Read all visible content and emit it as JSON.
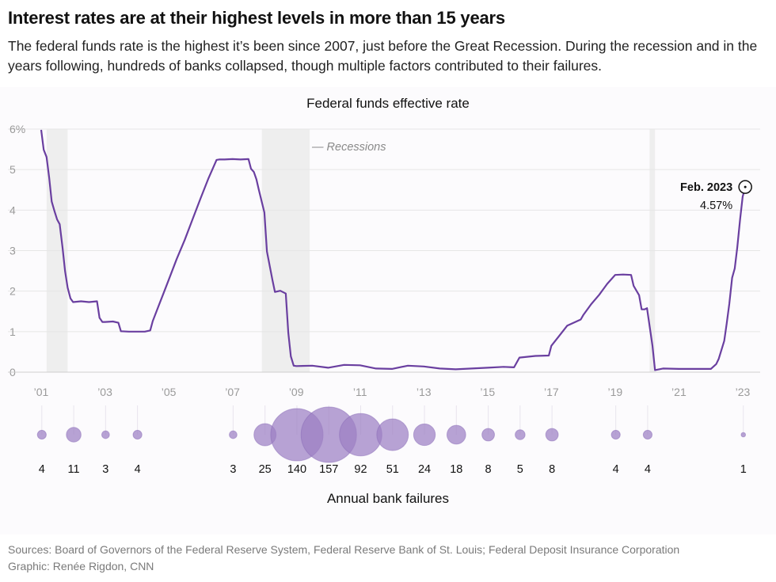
{
  "header": {
    "title": "Interest rates are at their highest levels in more than 15 years",
    "subtitle": "The federal funds rate is the highest it’s been since 2007, just before the Great Recession. During the recession and in the years following, hundreds of banks collapsed, though multiple factors contributed to their failures."
  },
  "colors": {
    "line": "#6a3fa0",
    "bubble": "#9c7fc4",
    "recession": "#eeeeee",
    "grid": "#e6e6e6",
    "axis_text": "#9a9a9a"
  },
  "chart_data": [
    {
      "type": "line",
      "title": "Federal funds effective rate",
      "xlabel": "",
      "ylabel": "",
      "xlim": [
        2001.0,
        2023.25
      ],
      "ylim": [
        0,
        6
      ],
      "y_ticks": [
        0,
        1,
        2,
        3,
        4,
        5,
        6
      ],
      "y_tick_labels": [
        "0",
        "1",
        "2",
        "3",
        "4",
        "5",
        "6%"
      ],
      "x_ticks": [
        2001,
        2003,
        2005,
        2007,
        2009,
        2011,
        2013,
        2015,
        2017,
        2019,
        2021,
        2023
      ],
      "x_tick_labels": [
        "’01",
        "’03",
        "’05",
        "’07",
        "’09",
        "’11",
        "’13",
        "’15",
        "’17",
        "’19",
        "’21",
        "’23"
      ],
      "recession_label": "— Recessions",
      "recessions": [
        [
          2001.17,
          2001.83
        ],
        [
          2007.92,
          2009.42
        ],
        [
          2020.08,
          2020.25
        ]
      ],
      "annotation": {
        "label": "Feb. 2023",
        "value_label": "4.57%",
        "x": 2023.08,
        "y": 4.57
      },
      "series": [
        {
          "name": "Federal funds effective rate",
          "x": [
            2001.0,
            2001.08,
            2001.17,
            2001.25,
            2001.33,
            2001.42,
            2001.5,
            2001.58,
            2001.67,
            2001.75,
            2001.83,
            2001.92,
            2002.0,
            2002.25,
            2002.5,
            2002.75,
            2002.83,
            2002.92,
            2003.0,
            2003.25,
            2003.42,
            2003.5,
            2003.75,
            2004.0,
            2004.25,
            2004.42,
            2004.5,
            2004.67,
            2004.83,
            2005.0,
            2005.25,
            2005.5,
            2005.75,
            2006.0,
            2006.25,
            2006.5,
            2006.58,
            2006.75,
            2007.0,
            2007.25,
            2007.5,
            2007.58,
            2007.67,
            2007.75,
            2007.83,
            2008.0,
            2008.08,
            2008.25,
            2008.33,
            2008.5,
            2008.67,
            2008.75,
            2008.83,
            2008.92,
            2009.0,
            2009.5,
            2010.0,
            2010.5,
            2011.0,
            2011.5,
            2012.0,
            2012.5,
            2013.0,
            2013.5,
            2014.0,
            2014.5,
            2015.0,
            2015.5,
            2015.83,
            2016.0,
            2016.5,
            2016.92,
            2017.0,
            2017.25,
            2017.5,
            2017.92,
            2018.0,
            2018.25,
            2018.5,
            2018.75,
            2019.0,
            2019.25,
            2019.5,
            2019.58,
            2019.75,
            2019.83,
            2019.92,
            2020.0,
            2020.17,
            2020.25,
            2020.5,
            2021.0,
            2021.5,
            2022.0,
            2022.17,
            2022.25,
            2022.42,
            2022.5,
            2022.58,
            2022.67,
            2022.75,
            2022.83,
            2022.92,
            2023.0,
            2023.08
          ],
          "y": [
            5.98,
            5.49,
            5.31,
            4.8,
            4.21,
            3.97,
            3.77,
            3.65,
            3.07,
            2.49,
            2.09,
            1.82,
            1.73,
            1.75,
            1.73,
            1.75,
            1.34,
            1.24,
            1.24,
            1.25,
            1.22,
            1.01,
            1.0,
            1.0,
            1.0,
            1.03,
            1.26,
            1.61,
            1.93,
            2.28,
            2.79,
            3.26,
            3.78,
            4.29,
            4.79,
            5.24,
            5.25,
            5.25,
            5.26,
            5.25,
            5.26,
            5.02,
            4.94,
            4.76,
            4.49,
            3.94,
            2.98,
            2.28,
            1.98,
            2.01,
            1.94,
            0.97,
            0.39,
            0.16,
            0.15,
            0.16,
            0.11,
            0.18,
            0.17,
            0.09,
            0.08,
            0.16,
            0.14,
            0.09,
            0.07,
            0.09,
            0.11,
            0.13,
            0.12,
            0.36,
            0.4,
            0.41,
            0.65,
            0.9,
            1.15,
            1.3,
            1.41,
            1.68,
            1.91,
            2.18,
            2.4,
            2.41,
            2.4,
            2.13,
            1.9,
            1.55,
            1.55,
            1.58,
            0.65,
            0.05,
            0.09,
            0.08,
            0.08,
            0.08,
            0.2,
            0.33,
            0.77,
            1.21,
            1.68,
            2.33,
            2.56,
            3.08,
            3.78,
            4.33,
            4.57
          ]
        }
      ]
    },
    {
      "type": "scatter",
      "title": "Annual bank failures",
      "categories": [
        "2001",
        "2002",
        "2003",
        "2004",
        "2007",
        "2008",
        "2009",
        "2010",
        "2011",
        "2012",
        "2013",
        "2014",
        "2015",
        "2016",
        "2017",
        "2019",
        "2020",
        "2023"
      ],
      "values": [
        4,
        11,
        3,
        4,
        3,
        25,
        140,
        157,
        92,
        51,
        24,
        18,
        8,
        5,
        8,
        4,
        4,
        1
      ]
    }
  ],
  "footer": {
    "sources": "Sources: Board of Governors of the Federal Reserve System, Federal Reserve Bank of St. Louis; Federal Deposit Insurance Corporation",
    "graphic": "Graphic: Renée Rigdon, CNN"
  }
}
